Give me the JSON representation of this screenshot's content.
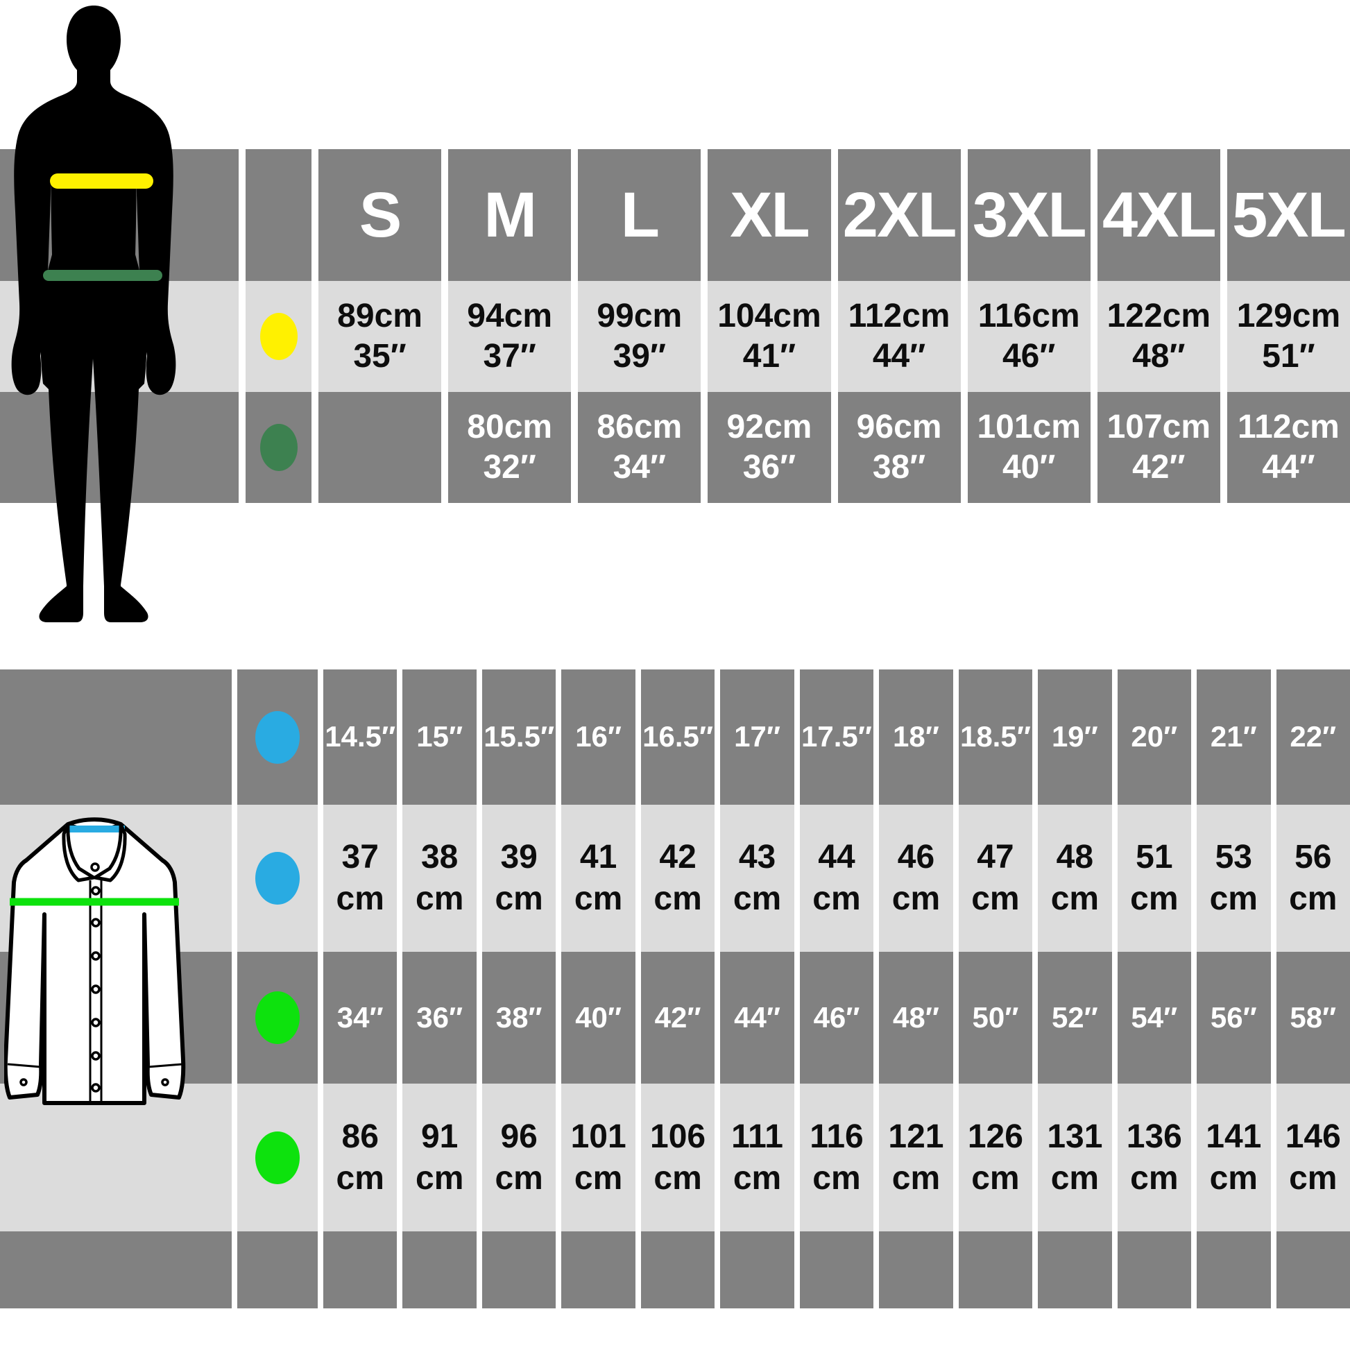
{
  "page": {
    "description": "Menswear size guide infographic with two measurement tables",
    "background": "#ffffff"
  },
  "colors": {
    "band_dark": "#818181",
    "band_light": "#dcdcdc",
    "silhouette_black": "#000000",
    "chest_yellow": "#fff100",
    "waist_green": "#3d8150",
    "collar_blue": "#29abe2",
    "shirt_chest_green": "#0de20d",
    "shirt_outline": "#000000",
    "shirt_fill": "#ffffff"
  },
  "icons": {
    "silhouette": "mens-body-silhouette",
    "shirt": "long-sleeve-shirt-illustration"
  },
  "chart_data": [
    {
      "type": "table",
      "title": "Body size chart (chest and waist by garment size)",
      "columns": [
        "S",
        "M",
        "L",
        "XL",
        "2XL",
        "3XL",
        "4XL",
        "5XL"
      ],
      "legend": [
        {
          "marker": "yellow-dot",
          "color": "#fff100",
          "measure": "chest"
        },
        {
          "marker": "green-dot",
          "color": "#3d8150",
          "measure": "waist"
        }
      ],
      "rows": [
        {
          "measure": "chest",
          "cm": [
            89,
            94,
            99,
            104,
            112,
            116,
            122,
            129
          ],
          "inches": [
            35,
            37,
            39,
            41,
            44,
            46,
            48,
            51
          ],
          "cells": [
            {
              "line1": "89cm",
              "line2": "35″"
            },
            {
              "line1": "94cm",
              "line2": "37″"
            },
            {
              "line1": "99cm",
              "line2": "39″"
            },
            {
              "line1": "104cm",
              "line2": "41″"
            },
            {
              "line1": "112cm",
              "line2": "44″"
            },
            {
              "line1": "116cm",
              "line2": "46″"
            },
            {
              "line1": "122cm",
              "line2": "48″"
            },
            {
              "line1": "129cm",
              "line2": "51″"
            }
          ]
        },
        {
          "measure": "waist",
          "cm": [
            null,
            80,
            86,
            92,
            96,
            101,
            107,
            112
          ],
          "inches": [
            null,
            32,
            34,
            36,
            38,
            40,
            42,
            44
          ],
          "cells": [
            {
              "line1": "",
              "line2": ""
            },
            {
              "line1": "80cm",
              "line2": "32″"
            },
            {
              "line1": "86cm",
              "line2": "34″"
            },
            {
              "line1": "92cm",
              "line2": "36″"
            },
            {
              "line1": "96cm",
              "line2": "38″"
            },
            {
              "line1": "101cm",
              "line2": "40″"
            },
            {
              "line1": "107cm",
              "line2": "42″"
            },
            {
              "line1": "112cm",
              "line2": "44″"
            }
          ]
        }
      ]
    },
    {
      "type": "table",
      "title": "Shirt size chart (collar and chest)",
      "columns": null,
      "legend": [
        {
          "marker": "blue-dot",
          "color": "#29abe2",
          "measure": "collar"
        },
        {
          "marker": "green-dot",
          "color": "#0de20d",
          "measure": "chest"
        }
      ],
      "rows": [
        {
          "measure": "collar-inches",
          "inches": [
            14.5,
            15,
            15.5,
            16,
            16.5,
            17,
            17.5,
            18,
            18.5,
            19,
            20,
            21,
            22
          ],
          "cells": [
            {
              "line1": "14.5″",
              "line2": null
            },
            {
              "line1": "15″",
              "line2": null
            },
            {
              "line1": "15.5″",
              "line2": null
            },
            {
              "line1": "16″",
              "line2": null
            },
            {
              "line1": "16.5″",
              "line2": null
            },
            {
              "line1": "17″",
              "line2": null
            },
            {
              "line1": "17.5″",
              "line2": null
            },
            {
              "line1": "18″",
              "line2": null
            },
            {
              "line1": "18.5″",
              "line2": null
            },
            {
              "line1": "19″",
              "line2": null
            },
            {
              "line1": "20″",
              "line2": null
            },
            {
              "line1": "21″",
              "line2": null
            },
            {
              "line1": "22″",
              "line2": null
            }
          ]
        },
        {
          "measure": "collar-cm",
          "cm": [
            37,
            38,
            39,
            41,
            42,
            43,
            44,
            46,
            47,
            48,
            51,
            53,
            56
          ],
          "cells": [
            {
              "line1": "37",
              "line2": "cm"
            },
            {
              "line1": "38",
              "line2": "cm"
            },
            {
              "line1": "39",
              "line2": "cm"
            },
            {
              "line1": "41",
              "line2": "cm"
            },
            {
              "line1": "42",
              "line2": "cm"
            },
            {
              "line1": "43",
              "line2": "cm"
            },
            {
              "line1": "44",
              "line2": "cm"
            },
            {
              "line1": "46",
              "line2": "cm"
            },
            {
              "line1": "47",
              "line2": "cm"
            },
            {
              "line1": "48",
              "line2": "cm"
            },
            {
              "line1": "51",
              "line2": "cm"
            },
            {
              "line1": "53",
              "line2": "cm"
            },
            {
              "line1": "56",
              "line2": "cm"
            }
          ]
        },
        {
          "measure": "chest-inches",
          "inches": [
            34,
            36,
            38,
            40,
            42,
            44,
            46,
            48,
            50,
            52,
            54,
            56,
            58
          ],
          "cells": [
            {
              "line1": "34″",
              "line2": null
            },
            {
              "line1": "36″",
              "line2": null
            },
            {
              "line1": "38″",
              "line2": null
            },
            {
              "line1": "40″",
              "line2": null
            },
            {
              "line1": "42″",
              "line2": null
            },
            {
              "line1": "44″",
              "line2": null
            },
            {
              "line1": "46″",
              "line2": null
            },
            {
              "line1": "48″",
              "line2": null
            },
            {
              "line1": "50″",
              "line2": null
            },
            {
              "line1": "52″",
              "line2": null
            },
            {
              "line1": "54″",
              "line2": null
            },
            {
              "line1": "56″",
              "line2": null
            },
            {
              "line1": "58″",
              "line2": null
            }
          ]
        },
        {
          "measure": "chest-cm",
          "cm": [
            86,
            91,
            96,
            101,
            106,
            111,
            116,
            121,
            126,
            131,
            136,
            141,
            146
          ],
          "cells": [
            {
              "line1": "86",
              "line2": "cm"
            },
            {
              "line1": "91",
              "line2": "cm"
            },
            {
              "line1": "96",
              "line2": "cm"
            },
            {
              "line1": "101",
              "line2": "cm"
            },
            {
              "line1": "106",
              "line2": "cm"
            },
            {
              "line1": "111",
              "line2": "cm"
            },
            {
              "line1": "116",
              "line2": "cm"
            },
            {
              "line1": "121",
              "line2": "cm"
            },
            {
              "line1": "126",
              "line2": "cm"
            },
            {
              "line1": "131",
              "line2": "cm"
            },
            {
              "line1": "136",
              "line2": "cm"
            },
            {
              "line1": "141",
              "line2": "cm"
            },
            {
              "line1": "146",
              "line2": "cm"
            }
          ]
        }
      ],
      "footer_row": {
        "empty_cells": 13
      }
    }
  ]
}
